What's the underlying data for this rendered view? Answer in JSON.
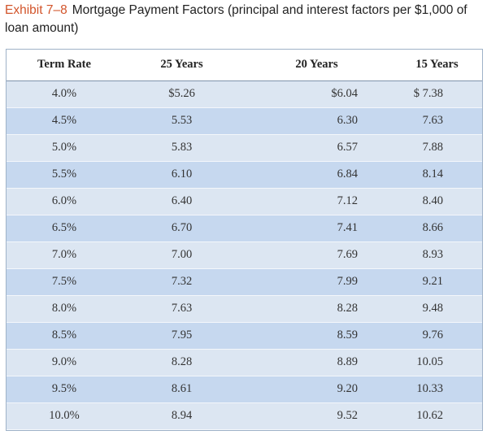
{
  "caption": {
    "exhibit": "Exhibit 7–8",
    "title": "Mortgage Payment Factors (principal and interest factors per $1,000 of loan amount)"
  },
  "table": {
    "headers": [
      "Term Rate",
      "25 Years",
      "20 Years",
      "15 Years"
    ],
    "rows": [
      [
        "4.0%",
        "$5.26",
        "$6.04",
        "$ 7.38"
      ],
      [
        "4.5%",
        "5.53",
        "6.30",
        "7.63"
      ],
      [
        "5.0%",
        "5.83",
        "6.57",
        "7.88"
      ],
      [
        "5.5%",
        "6.10",
        "6.84",
        "8.14"
      ],
      [
        "6.0%",
        "6.40",
        "7.12",
        "8.40"
      ],
      [
        "6.5%",
        "6.70",
        "7.41",
        "8.66"
      ],
      [
        "7.0%",
        "7.00",
        "7.69",
        "8.93"
      ],
      [
        "7.5%",
        "7.32",
        "7.99",
        "9.21"
      ],
      [
        "8.0%",
        "7.63",
        "8.28",
        "9.48"
      ],
      [
        "8.5%",
        "7.95",
        "8.59",
        "9.76"
      ],
      [
        "9.0%",
        "8.28",
        "8.89",
        "10.05"
      ],
      [
        "9.5%",
        "8.61",
        "9.20",
        "10.33"
      ],
      [
        "10.0%",
        "8.94",
        "9.52",
        "10.62"
      ]
    ]
  },
  "colors": {
    "exhibit_label": "#d2542a",
    "row_light": "#dce6f2",
    "row_dark": "#c6d8ef"
  }
}
